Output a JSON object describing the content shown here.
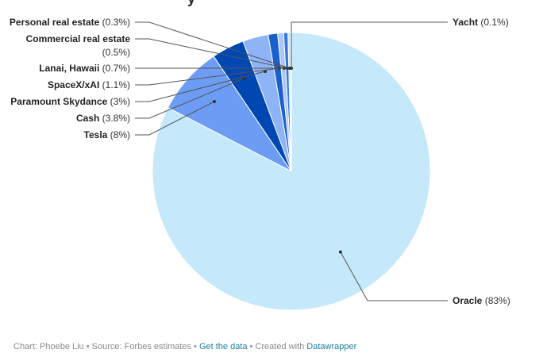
{
  "chart_data": {
    "type": "pie",
    "title_fragment": "y",
    "slices": [
      {
        "name": "Oracle",
        "value": 83,
        "label": "(83%)",
        "color": "#c5e8fb"
      },
      {
        "name": "Tesla",
        "value": 8,
        "label": "(8%)",
        "color": "#6d9cf5"
      },
      {
        "name": "Cash",
        "value": 3.8,
        "label": "(3.8%)",
        "color": "#0047b3"
      },
      {
        "name": "Paramount Skydance",
        "value": 3,
        "label": "(3%)",
        "color": "#8fb3f7"
      },
      {
        "name": "SpaceX/xAI",
        "value": 1.1,
        "label": "(1.1%)",
        "color": "#1a5fcc"
      },
      {
        "name": "Lanai, Hawaii",
        "value": 0.7,
        "label": "(0.7%)",
        "color": "#a9c8f9"
      },
      {
        "name": "Commercial real estate",
        "value": 0.5,
        "label": "(0.5%)",
        "color": "#3a76dd"
      },
      {
        "name": "Personal real estate",
        "value": 0.3,
        "label": "(0.3%)",
        "color": "#c5e8fb"
      },
      {
        "name": "Yacht",
        "value": 0.1,
        "label": "(0.1%)",
        "color": "#2f6bd6"
      }
    ]
  },
  "footer": {
    "text": "Chart: Phoebe Liu • Source: Forbes estimates • ",
    "link1": "Get the data",
    "mid": " • Created with ",
    "link2": "Datawrapper"
  }
}
